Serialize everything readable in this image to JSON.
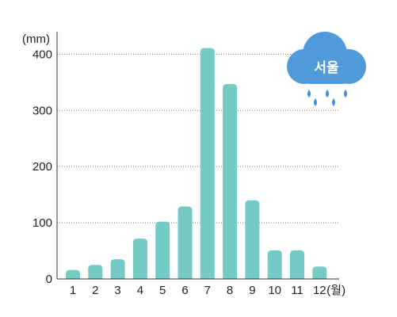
{
  "chart_data": {
    "type": "bar",
    "categories": [
      "1",
      "2",
      "3",
      "4",
      "5",
      "6",
      "7",
      "8",
      "9",
      "10",
      "11",
      "12"
    ],
    "values": [
      16,
      25,
      35,
      72,
      102,
      129,
      411,
      347,
      140,
      51,
      51,
      22
    ],
    "xunit": "(월)",
    "yunit": "(mm)",
    "yticks": [
      "0",
      "100",
      "200",
      "300",
      "400"
    ],
    "ylim": [
      0,
      440
    ],
    "grid": "horizontal dotted",
    "bar_color": "#74cbc6",
    "grid_color": "#777777"
  },
  "badge": {
    "label": "서울",
    "icon": "rain-cloud-icon",
    "cloud_color": "#4f9ad8",
    "drop_color": "#3f8fd4"
  }
}
